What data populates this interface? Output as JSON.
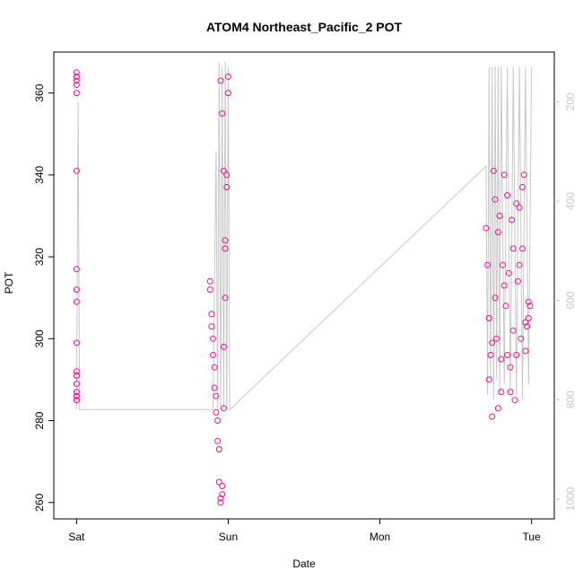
{
  "chart_data": {
    "type": "scatter",
    "title": "ATOM4 Northeast_Pacific_2 POT",
    "xlabel": "Date",
    "ylabel": "POT",
    "x_ticks": [
      "Sat",
      "Sun",
      "Mon",
      "Tue"
    ],
    "x_range_days": [
      -0.15,
      3.15
    ],
    "y_left": {
      "range": [
        256,
        370
      ],
      "ticks": [
        260,
        280,
        300,
        320,
        340,
        360
      ]
    },
    "y_right": {
      "range": [
        100,
        1040
      ],
      "ticks": [
        200,
        400,
        600,
        800,
        1000
      ],
      "reversed": true
    },
    "grid": false,
    "series": [
      {
        "style": "points",
        "color": "#e6149a",
        "x_days": [
          0.0,
          0.0,
          0.0,
          0.0,
          0.0,
          0.0,
          0.0,
          0.0,
          0.0,
          0.0,
          0.0,
          0.0,
          0.0,
          0.0,
          0.0,
          0.0,
          0.0,
          0.0,
          0.0,
          0.0,
          0.88,
          0.88,
          0.89,
          0.89,
          0.9,
          0.9,
          0.91,
          0.91,
          0.92,
          0.92,
          0.93,
          0.93,
          0.94,
          0.94,
          0.95,
          0.95,
          0.96,
          0.96,
          0.97,
          0.97,
          0.98,
          0.98,
          0.99,
          0.99,
          1.0,
          1.0,
          0.95,
          0.96,
          0.97,
          0.98,
          2.7,
          2.71,
          2.72,
          2.73,
          2.74,
          2.75,
          2.76,
          2.77,
          2.78,
          2.79,
          2.8,
          2.81,
          2.82,
          2.83,
          2.84,
          2.85,
          2.86,
          2.87,
          2.88,
          2.89,
          2.9,
          2.91,
          2.92,
          2.93,
          2.94,
          2.95,
          2.96,
          2.97,
          2.98,
          2.99,
          2.72,
          2.76,
          2.8,
          2.84,
          2.88,
          2.92,
          2.96,
          2.74,
          2.78,
          2.82,
          2.86,
          2.9,
          2.94,
          2.98
        ],
        "y": [
          365,
          364,
          363,
          362,
          360,
          341,
          317,
          312,
          309,
          299,
          292,
          291,
          289,
          287,
          286,
          286,
          285,
          285,
          291,
          364,
          314,
          312,
          306,
          303,
          300,
          296,
          293,
          288,
          286,
          282,
          280,
          275,
          273,
          265,
          261,
          260,
          262,
          264,
          283,
          298,
          310,
          322,
          337,
          340,
          360,
          364,
          363,
          355,
          341,
          324,
          327,
          318,
          305,
          296,
          281,
          341,
          334,
          300,
          283,
          330,
          287,
          318,
          340,
          308,
          296,
          316,
          287,
          329,
          302,
          285,
          296,
          314,
          332,
          300,
          322,
          340,
          297,
          303,
          309,
          308,
          290,
          310,
          295,
          335,
          322,
          318,
          304,
          299,
          326,
          313,
          293,
          333,
          337,
          305
        ]
      },
      {
        "style": "line",
        "color": "#c8c8c8",
        "axis": "right",
        "x_days": [
          0.0,
          0.01,
          0.02,
          0.9,
          0.92,
          0.93,
          0.94,
          0.95,
          0.96,
          0.97,
          0.98,
          0.99,
          1.0,
          1.01,
          2.7,
          2.71,
          2.72,
          2.73,
          2.74,
          2.75,
          2.76,
          2.77,
          2.78,
          2.79,
          2.8,
          2.82,
          2.84,
          2.86,
          2.88,
          2.9,
          2.92,
          2.94,
          2.96,
          2.98,
          3.0
        ],
        "y": [
          820,
          200,
          820,
          820,
          300,
          820,
          120,
          820,
          130,
          820,
          120,
          820,
          130,
          820,
          330,
          790,
          130,
          760,
          130,
          800,
          130,
          760,
          130,
          790,
          130,
          770,
          130,
          780,
          130,
          790,
          130,
          800,
          130,
          770,
          130
        ]
      }
    ]
  }
}
